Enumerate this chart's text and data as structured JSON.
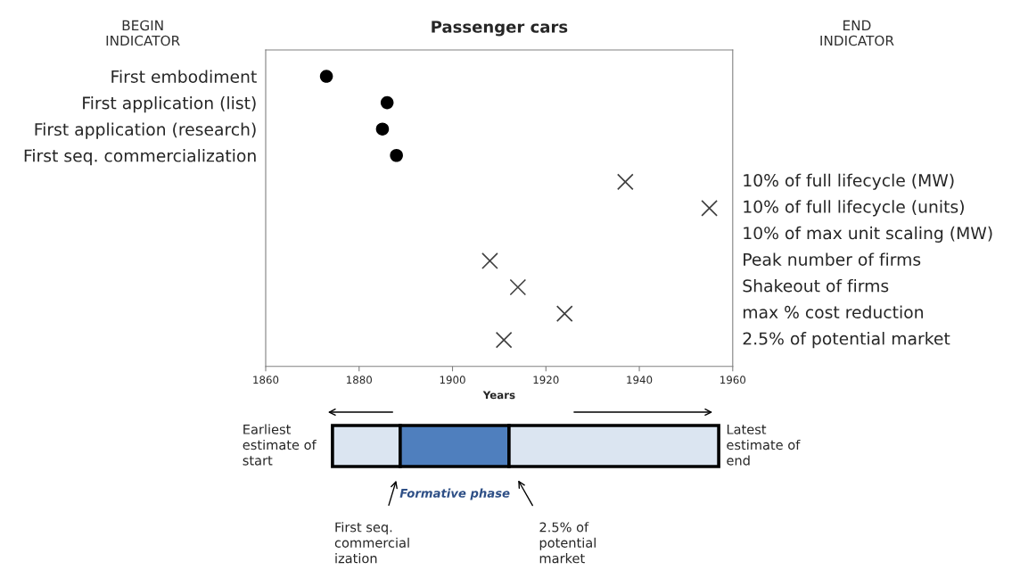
{
  "chart_data": [
    {
      "type": "scatter",
      "title": "Passenger cars",
      "xlabel": "Years",
      "orientation": "horizontal",
      "categories": [
        "First embodiment",
        "First application (list)",
        "First application (research)",
        "First seq. commercialization",
        null,
        null,
        null,
        null,
        null,
        null,
        null
      ],
      "y2_categories": [
        null,
        null,
        null,
        null,
        "10% of full lifecycle (MW)",
        "10% of full lifecycle (units)",
        "10% of max unit scaling (MW)",
        "Peak number of firms",
        "Shakeout of firms",
        "max % cost reduction",
        "2.5% of potential market"
      ],
      "series": [
        {
          "type": "scatter",
          "color": "#000000",
          "marker": "circle",
          "values": [
            1873,
            1886,
            1885,
            1888,
            null,
            null,
            null,
            null,
            null,
            null,
            null
          ]
        },
        {
          "type": "scatter",
          "color": "#404040",
          "marker": "cross",
          "values": [
            null,
            null,
            null,
            null,
            1937,
            1955,
            null,
            1908,
            1914,
            1924,
            1911
          ]
        }
      ],
      "xlim": [
        1860,
        1960
      ],
      "xticks": [
        1860,
        1880,
        1900,
        1920,
        1940,
        1960
      ],
      "grid": false,
      "legend": false,
      "annotations": [
        "BEGIN\nINDICATOR",
        "END\nINDICATOR"
      ]
    },
    {
      "type": "other",
      "annotations": [
        "Earliest\nestimate of\nstart",
        "Latest\nestimate of\nend",
        "Formative phase",
        "First seq.\ncommercial\nization",
        "2.5% of\npotential\nmarket"
      ]
    }
  ]
}
